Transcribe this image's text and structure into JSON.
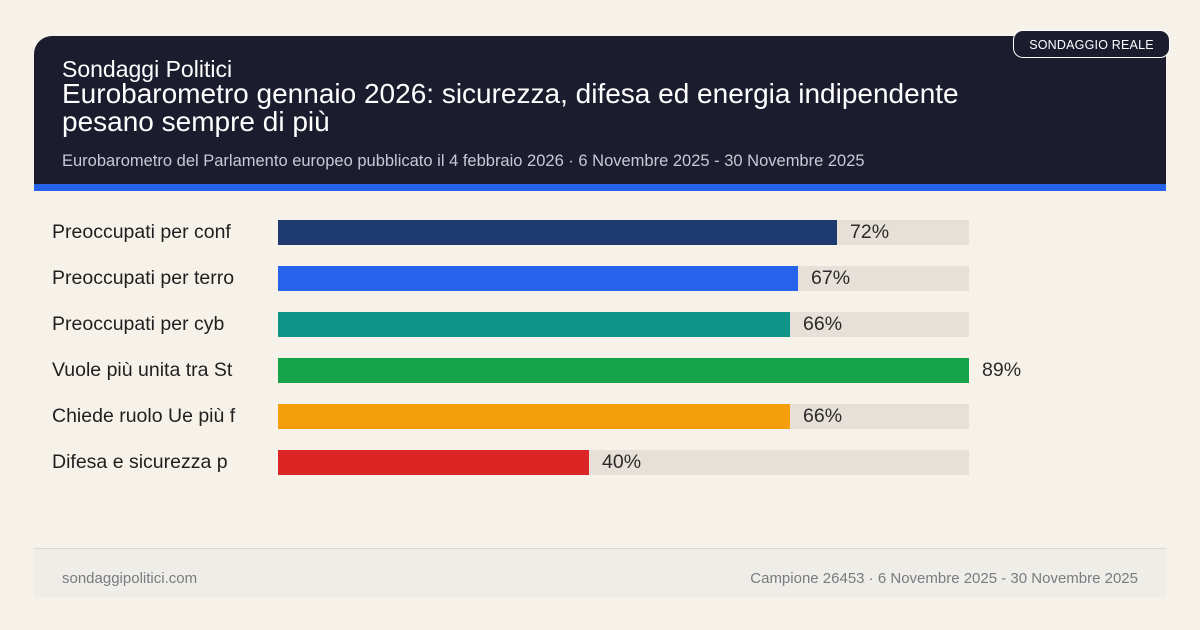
{
  "header": {
    "kicker": "Sondaggi Politici",
    "title": "Eurobarometro gennaio 2026: sicurezza, difesa ed energia indipendente pesano sempre di più",
    "subtitle": "Eurobarometro del Parlamento europeo pubblicato il 4 febbraio 2026 · 6 Novembre 2025 - 30 Novembre 2025",
    "badge": "SONDAGGIO REALE"
  },
  "colors": {
    "header_bg": "#1c1c2f",
    "accent": "#2563eb",
    "track": "#e6e0d8",
    "page_bg": "#f6f2ea"
  },
  "chart_data": {
    "type": "bar",
    "orientation": "horizontal",
    "categories": [
      "Preoccupati per conf",
      "Preoccupati per terro",
      "Preoccupati per cyb",
      "Vuole più unita tra St",
      "Chiede ruolo Ue più f",
      "Difesa e sicurezza p"
    ],
    "values": [
      72,
      67,
      66,
      89,
      66,
      40
    ],
    "value_labels": [
      "72%",
      "67%",
      "66%",
      "89%",
      "66%",
      "40%"
    ],
    "colors": [
      "#1e3a6e",
      "#2563eb",
      "#0f9488",
      "#16a34a",
      "#f59e0b",
      "#dc2626"
    ],
    "xlim": [
      0,
      89
    ],
    "grid": false,
    "legend": "none"
  },
  "footer": {
    "source": "sondaggipolitici.com",
    "sample": "Campione 26453 · 6 Novembre 2025 - 30 Novembre 2025"
  }
}
